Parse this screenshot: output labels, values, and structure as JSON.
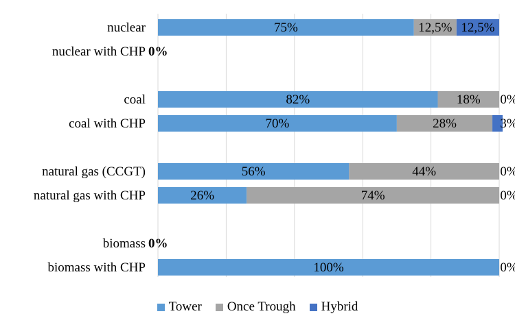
{
  "chart_data": {
    "type": "bar",
    "orientation": "horizontal",
    "stacked": true,
    "xlim": [
      0,
      100
    ],
    "grid": true,
    "legend_position": "bottom",
    "categories": [
      "nuclear",
      "nuclear with CHP",
      "coal",
      "coal with CHP",
      "natural gas (CCGT)",
      "natural gas with CHP",
      "biomass",
      "biomass with CHP"
    ],
    "series": [
      {
        "name": "Tower",
        "color": "#5B9BD5",
        "values": [
          75,
          0,
          82,
          70,
          56,
          26,
          0,
          100
        ],
        "labels": [
          "75%",
          "",
          "82%",
          "70%",
          "56%",
          "26%",
          "",
          "100%"
        ]
      },
      {
        "name": "Once Trough",
        "color": "#A5A5A5",
        "values": [
          12.5,
          0,
          18,
          28,
          44,
          74,
          0,
          0
        ],
        "labels": [
          "12,5%",
          "",
          "18%",
          "28%",
          "44%",
          "74%",
          "",
          ""
        ]
      },
      {
        "name": "Hybrid",
        "color": "#4472C4",
        "values": [
          12.5,
          0,
          0,
          3,
          0,
          0,
          0,
          0
        ],
        "labels": [
          "12,5%",
          "",
          "0%",
          "3%",
          "0%",
          "0%",
          "",
          "0%"
        ]
      }
    ],
    "empty_labels": [
      "",
      "0%",
      "",
      "",
      "",
      "",
      "0%",
      ""
    ]
  }
}
